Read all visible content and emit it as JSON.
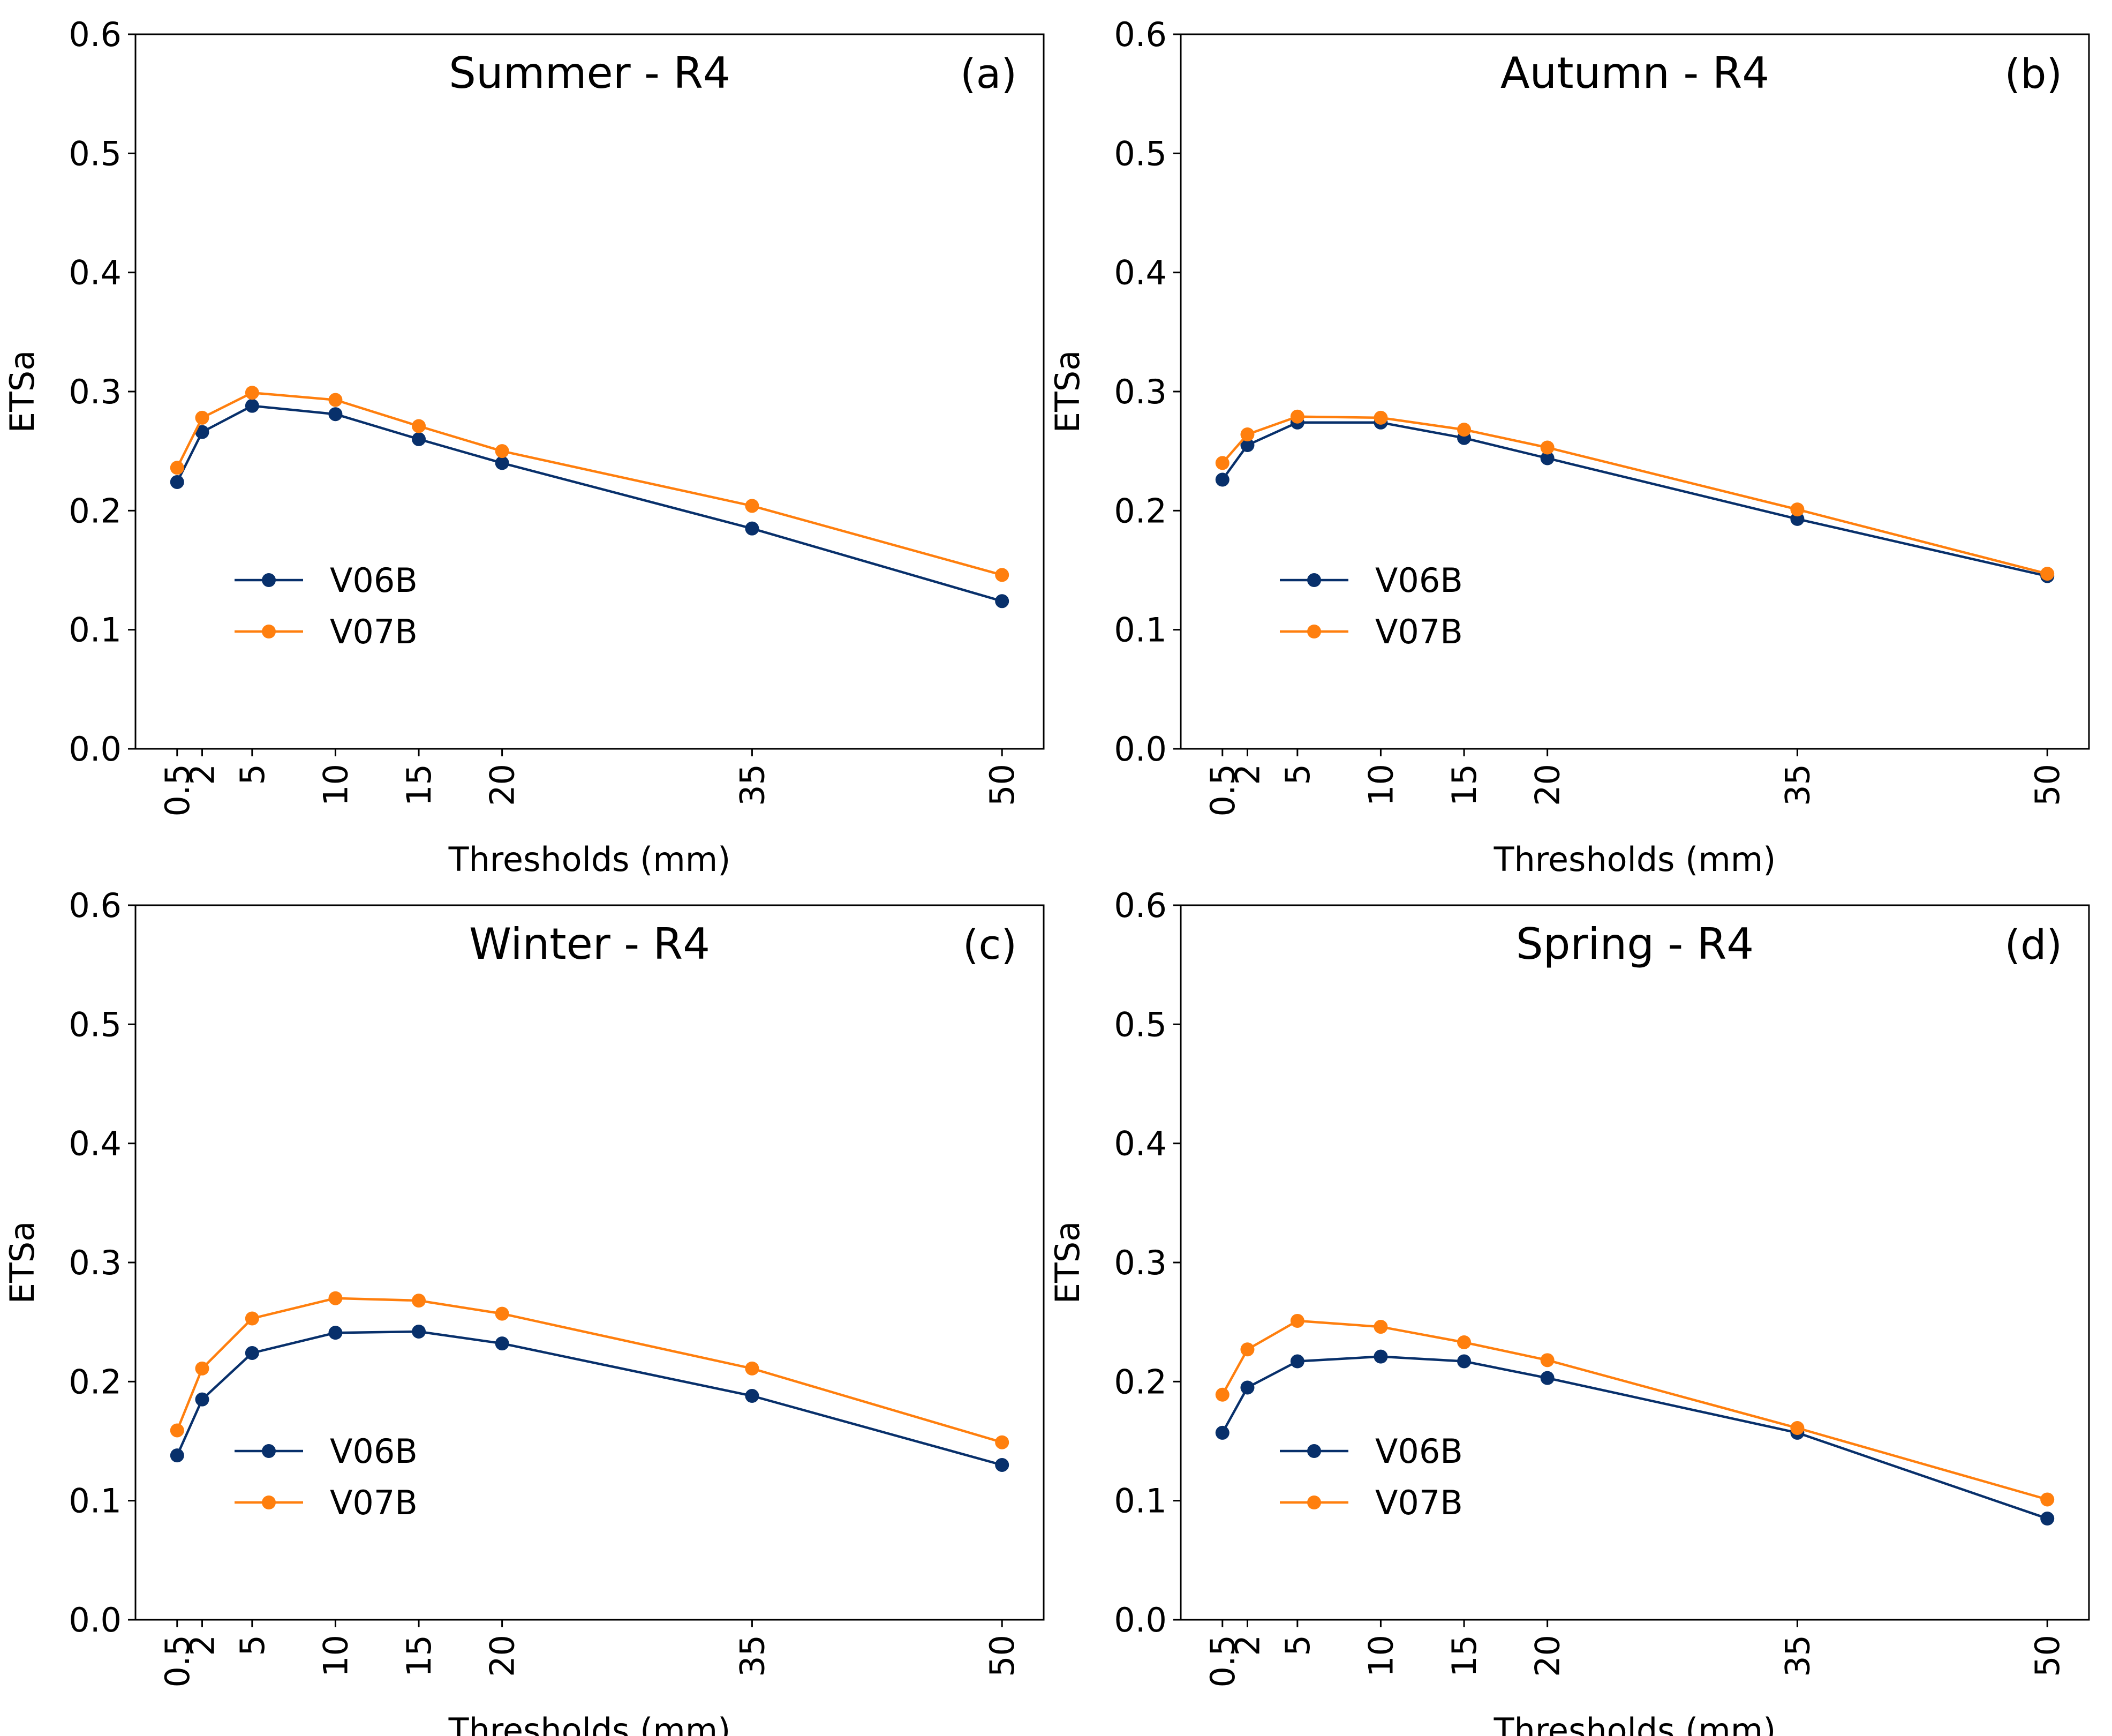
{
  "chart_data": [
    {
      "type": "line",
      "title": "Summer - R4",
      "panel_label": "(a)",
      "xlabel": "Thresholds (mm)",
      "ylabel": "ETSa",
      "x": [
        0.5,
        2,
        5,
        10,
        15,
        20,
        35,
        50
      ],
      "x_tick_labels": [
        "0.5",
        "2",
        "5",
        "10",
        "15",
        "20",
        "35",
        "50"
      ],
      "xlim": [
        -2,
        52.5
      ],
      "ylim": [
        0.0,
        0.6
      ],
      "y_ticks": [
        0.0,
        0.1,
        0.2,
        0.3,
        0.4,
        0.5,
        0.6
      ],
      "y_tick_labels": [
        "0.0",
        "0.1",
        "0.2",
        "0.3",
        "0.4",
        "0.5",
        "0.6"
      ],
      "legend_position": "lower-left",
      "grid": false,
      "series": [
        {
          "name": "V06B",
          "color": "#08306b",
          "values": [
            0.224,
            0.266,
            0.288,
            0.281,
            0.26,
            0.24,
            0.185,
            0.124
          ]
        },
        {
          "name": "V07B",
          "color": "#ff7f0e",
          "values": [
            0.236,
            0.278,
            0.299,
            0.293,
            0.271,
            0.25,
            0.204,
            0.146
          ]
        }
      ]
    },
    {
      "type": "line",
      "title": "Autumn - R4",
      "panel_label": "(b)",
      "xlabel": "Thresholds (mm)",
      "ylabel": "ETSa",
      "x": [
        0.5,
        2,
        5,
        10,
        15,
        20,
        35,
        50
      ],
      "x_tick_labels": [
        "0.5",
        "2",
        "5",
        "10",
        "15",
        "20",
        "35",
        "50"
      ],
      "xlim": [
        -2,
        52.5
      ],
      "ylim": [
        0.0,
        0.6
      ],
      "y_ticks": [
        0.0,
        0.1,
        0.2,
        0.3,
        0.4,
        0.5,
        0.6
      ],
      "y_tick_labels": [
        "0.0",
        "0.1",
        "0.2",
        "0.3",
        "0.4",
        "0.5",
        "0.6"
      ],
      "legend_position": "lower-left",
      "grid": false,
      "series": [
        {
          "name": "V06B",
          "color": "#08306b",
          "values": [
            0.226,
            0.255,
            0.274,
            0.274,
            0.261,
            0.244,
            0.193,
            0.145
          ]
        },
        {
          "name": "V07B",
          "color": "#ff7f0e",
          "values": [
            0.24,
            0.264,
            0.279,
            0.278,
            0.268,
            0.253,
            0.201,
            0.147
          ]
        }
      ]
    },
    {
      "type": "line",
      "title": "Winter - R4",
      "panel_label": "(c)",
      "xlabel": "Thresholds (mm)",
      "ylabel": "ETSa",
      "x": [
        0.5,
        2,
        5,
        10,
        15,
        20,
        35,
        50
      ],
      "x_tick_labels": [
        "0.5",
        "2",
        "5",
        "10",
        "15",
        "20",
        "35",
        "50"
      ],
      "xlim": [
        -2,
        52.5
      ],
      "ylim": [
        0.0,
        0.6
      ],
      "y_ticks": [
        0.0,
        0.1,
        0.2,
        0.3,
        0.4,
        0.5,
        0.6
      ],
      "y_tick_labels": [
        "0.0",
        "0.1",
        "0.2",
        "0.3",
        "0.4",
        "0.5",
        "0.6"
      ],
      "legend_position": "lower-left",
      "grid": false,
      "series": [
        {
          "name": "V06B",
          "color": "#08306b",
          "values": [
            0.138,
            0.185,
            0.224,
            0.241,
            0.242,
            0.232,
            0.188,
            0.13
          ]
        },
        {
          "name": "V07B",
          "color": "#ff7f0e",
          "values": [
            0.159,
            0.211,
            0.253,
            0.27,
            0.268,
            0.257,
            0.211,
            0.149
          ]
        }
      ]
    },
    {
      "type": "line",
      "title": "Spring - R4",
      "panel_label": "(d)",
      "xlabel": "Thresholds (mm)",
      "ylabel": "ETSa",
      "x": [
        0.5,
        2,
        5,
        10,
        15,
        20,
        35,
        50
      ],
      "x_tick_labels": [
        "0.5",
        "2",
        "5",
        "10",
        "15",
        "20",
        "35",
        "50"
      ],
      "xlim": [
        -2,
        52.5
      ],
      "ylim": [
        0.0,
        0.6
      ],
      "y_ticks": [
        0.0,
        0.1,
        0.2,
        0.3,
        0.4,
        0.5,
        0.6
      ],
      "y_tick_labels": [
        "0.0",
        "0.1",
        "0.2",
        "0.3",
        "0.4",
        "0.5",
        "0.6"
      ],
      "legend_position": "lower-left",
      "grid": false,
      "series": [
        {
          "name": "V06B",
          "color": "#08306b",
          "values": [
            0.157,
            0.195,
            0.217,
            0.221,
            0.217,
            0.203,
            0.157,
            0.085
          ]
        },
        {
          "name": "V07B",
          "color": "#ff7f0e",
          "values": [
            0.189,
            0.227,
            0.251,
            0.246,
            0.233,
            0.218,
            0.161,
            0.101
          ]
        }
      ]
    }
  ]
}
